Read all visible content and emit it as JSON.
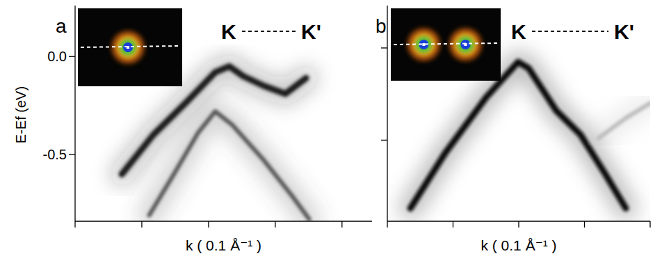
{
  "chart_data": [
    {
      "type": "line",
      "panel_label": "a",
      "annotations": [
        "K",
        "K'"
      ],
      "y_label": "E-Ef (eV)",
      "x_label": "k ( 0.1 Å⁻¹ )",
      "xlim": [
        0,
        4.45
      ],
      "xticks": [
        0,
        1,
        2,
        3,
        4
      ],
      "ylim": [
        -0.84,
        0.26
      ],
      "yticks": [
        {
          "value": 0,
          "label": "0.0"
        },
        {
          "value": -0.5,
          "label": "-0.5"
        }
      ],
      "tick_labels": "y",
      "series": [
        {
          "color": "#1a1a1a",
          "x": [
            0.7,
            1.17,
            1.69,
            2.1,
            2.31,
            2.52,
            2.83,
            3.15,
            3.46
          ],
          "values": [
            -0.6,
            -0.4,
            -0.225,
            -0.08,
            -0.05,
            -0.1,
            -0.15,
            -0.19,
            -0.11
          ]
        },
        {
          "color": "#555555",
          "x": [
            1.11,
            1.48,
            1.84,
            2.1,
            2.36,
            2.83,
            3.25,
            3.51
          ],
          "values": [
            -0.81,
            -0.6,
            -0.39,
            -0.28,
            -0.35,
            -0.53,
            -0.71,
            -0.83
          ]
        }
      ]
    },
    {
      "type": "line",
      "panel_label": "b",
      "annotations": [
        "K",
        "K'"
      ],
      "x_label": "k ( 0.1 Å⁻¹ )",
      "xlim": [
        0,
        4
      ],
      "xticks": [
        0,
        1,
        2,
        3,
        4
      ],
      "ylim": [
        -0.94,
        0.23
      ],
      "yticks": [
        0,
        -0.5
      ],
      "tick_labels": false,
      "series": [
        {
          "color": "#111111",
          "x": [
            0.35,
            0.88,
            1.51,
            1.99,
            2.15,
            2.57,
            2.94,
            3.31,
            3.63
          ],
          "values": [
            -0.87,
            -0.57,
            -0.265,
            -0.076,
            -0.11,
            -0.34,
            -0.47,
            -0.68,
            -0.87
          ]
        },
        {
          "color": "#bbbbbb",
          "x": [
            3.21,
            3.63,
            4.0
          ],
          "values": [
            -0.49,
            -0.38,
            -0.3
          ]
        }
      ]
    }
  ]
}
